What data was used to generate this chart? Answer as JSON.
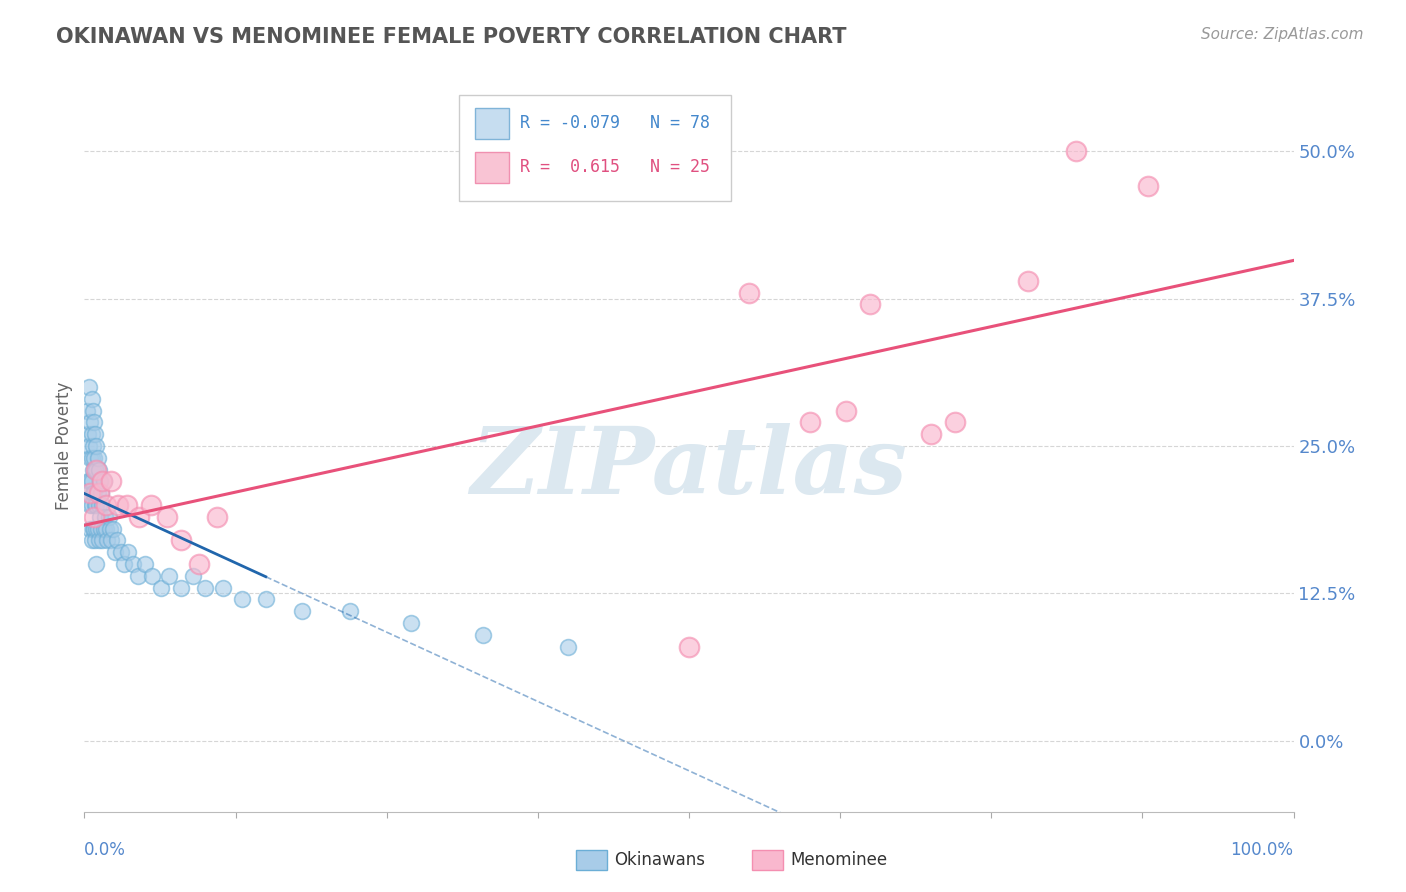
{
  "title": "OKINAWAN VS MENOMINEE FEMALE POVERTY CORRELATION CHART",
  "source": "Source: ZipAtlas.com",
  "ylabel": "Female Poverty",
  "y_tick_labels": [
    "0.0%",
    "12.5%",
    "25.0%",
    "37.5%",
    "50.0%"
  ],
  "y_tick_values": [
    0.0,
    0.125,
    0.25,
    0.375,
    0.5
  ],
  "xlim": [
    0.0,
    1.0
  ],
  "ylim": [
    -0.06,
    0.56
  ],
  "okinawan_color_fill": "#a8cce8",
  "okinawan_color_edge": "#6baed6",
  "menominee_color_fill": "#f9b8ce",
  "menominee_color_edge": "#f48fb1",
  "okinawan_line_color": "#2166ac",
  "menominee_line_color": "#e8517a",
  "grid_color": "#cccccc",
  "watermark": "ZIPatlas",
  "watermark_color": "#dce8f0",
  "background_color": "#ffffff",
  "title_color": "#555555",
  "source_color": "#999999",
  "ylabel_color": "#666666",
  "ytick_color": "#5588cc",
  "xtick_color": "#5588cc",
  "legend_edge_color": "#cccccc",
  "legend_blue_fill": "#c6ddf0",
  "legend_blue_edge": "#80b4d8",
  "legend_pink_fill": "#f9c4d4",
  "legend_pink_edge": "#f090b0",
  "legend_text_blue": "#4488cc",
  "legend_text_pink": "#e05080",
  "okinawan_x": [
    0.002,
    0.003,
    0.003,
    0.004,
    0.004,
    0.004,
    0.005,
    0.005,
    0.005,
    0.005,
    0.005,
    0.006,
    0.006,
    0.006,
    0.006,
    0.006,
    0.006,
    0.007,
    0.007,
    0.007,
    0.007,
    0.007,
    0.008,
    0.008,
    0.008,
    0.008,
    0.009,
    0.009,
    0.009,
    0.009,
    0.01,
    0.01,
    0.01,
    0.01,
    0.01,
    0.011,
    0.011,
    0.011,
    0.012,
    0.012,
    0.012,
    0.013,
    0.013,
    0.014,
    0.014,
    0.015,
    0.015,
    0.016,
    0.016,
    0.017,
    0.018,
    0.019,
    0.02,
    0.021,
    0.022,
    0.024,
    0.025,
    0.027,
    0.03,
    0.033,
    0.036,
    0.04,
    0.044,
    0.05,
    0.056,
    0.063,
    0.07,
    0.08,
    0.09,
    0.1,
    0.115,
    0.13,
    0.15,
    0.18,
    0.22,
    0.27,
    0.33,
    0.4
  ],
  "okinawan_y": [
    0.28,
    0.26,
    0.22,
    0.3,
    0.25,
    0.21,
    0.27,
    0.24,
    0.22,
    0.2,
    0.18,
    0.29,
    0.26,
    0.24,
    0.22,
    0.2,
    0.17,
    0.28,
    0.25,
    0.23,
    0.21,
    0.18,
    0.27,
    0.24,
    0.21,
    0.18,
    0.26,
    0.23,
    0.2,
    0.17,
    0.25,
    0.23,
    0.2,
    0.18,
    0.15,
    0.24,
    0.21,
    0.18,
    0.23,
    0.2,
    0.17,
    0.22,
    0.19,
    0.21,
    0.18,
    0.2,
    0.17,
    0.22,
    0.18,
    0.19,
    0.18,
    0.17,
    0.19,
    0.18,
    0.17,
    0.18,
    0.16,
    0.17,
    0.16,
    0.15,
    0.16,
    0.15,
    0.14,
    0.15,
    0.14,
    0.13,
    0.14,
    0.13,
    0.14,
    0.13,
    0.13,
    0.12,
    0.12,
    0.11,
    0.11,
    0.1,
    0.09,
    0.08
  ],
  "menominee_x": [
    0.005,
    0.008,
    0.01,
    0.012,
    0.015,
    0.018,
    0.022,
    0.028,
    0.035,
    0.045,
    0.055,
    0.068,
    0.08,
    0.095,
    0.11,
    0.5,
    0.55,
    0.6,
    0.63,
    0.65,
    0.7,
    0.72,
    0.78,
    0.82,
    0.88
  ],
  "menominee_y": [
    0.21,
    0.19,
    0.23,
    0.21,
    0.22,
    0.2,
    0.22,
    0.2,
    0.2,
    0.19,
    0.2,
    0.19,
    0.17,
    0.15,
    0.19,
    0.08,
    0.38,
    0.27,
    0.28,
    0.37,
    0.26,
    0.27,
    0.39,
    0.5,
    0.47
  ]
}
